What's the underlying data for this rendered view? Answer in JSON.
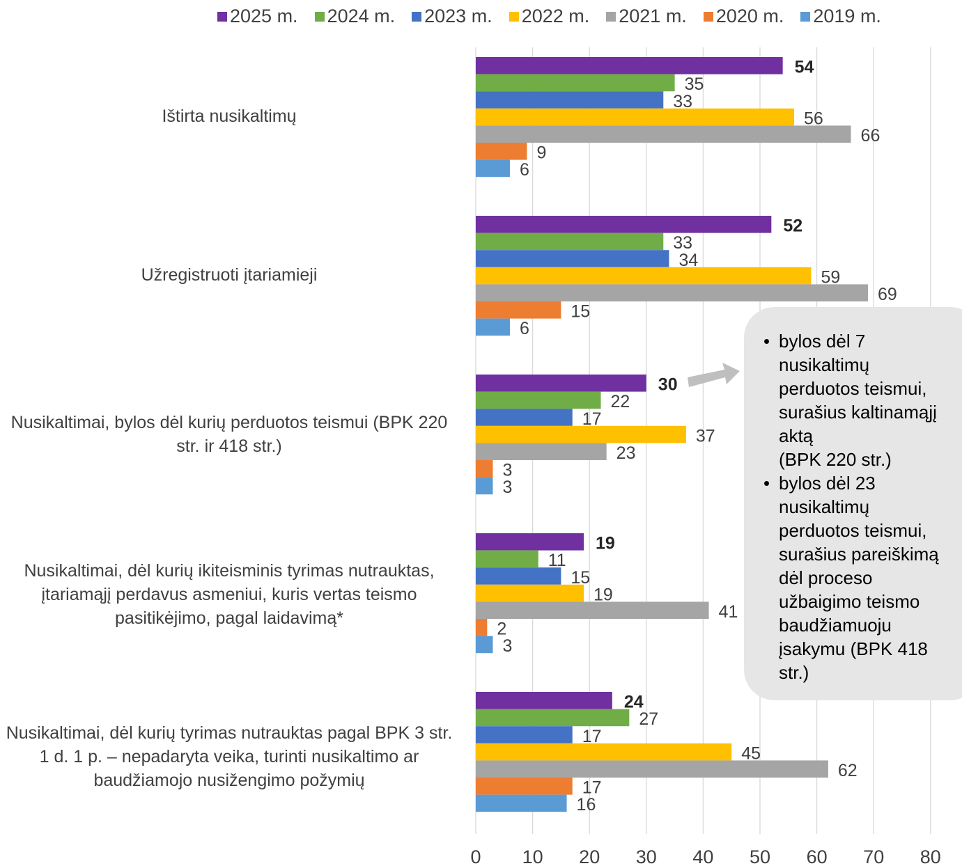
{
  "chart_data": {
    "type": "bar",
    "orientation": "horizontal",
    "categories": [
      "Ištirta nusikaltimų",
      "Užregistruoti įtariamieji",
      "Nusikaltimai, bylos dėl kurių perduotos teismui (BPK 220 str. ir 418 str.)",
      "Nusikaltimai, dėl kurių ikiteisminis tyrimas nutrauktas, įtariamąjį perdavus asmeniui, kuris vertas teismo pasitikėjimo, pagal laidavimą*",
      "Nusikaltimai, dėl kurių tyrimas nutrauktas pagal BPK 3 str. 1 d. 1 p. – nepadaryta veika, turinti nusikaltimo ar baudžiamojo nusižengimo požymių"
    ],
    "series": [
      {
        "name": "2025 m.",
        "color": "#7030A0",
        "values": [
          54,
          52,
          30,
          19,
          24
        ]
      },
      {
        "name": "2024 m.",
        "color": "#70AD47",
        "values": [
          35,
          33,
          22,
          11,
          27
        ]
      },
      {
        "name": "2023 m.",
        "color": "#4472C4",
        "values": [
          33,
          34,
          17,
          15,
          17
        ]
      },
      {
        "name": "2022 m.",
        "color": "#FFC000",
        "values": [
          56,
          59,
          37,
          19,
          45
        ]
      },
      {
        "name": "2021 m.",
        "color": "#A5A5A5",
        "values": [
          66,
          69,
          23,
          41,
          62
        ]
      },
      {
        "name": "2020 m.",
        "color": "#ED7D31",
        "values": [
          9,
          15,
          3,
          2,
          17
        ]
      },
      {
        "name": "2019 m.",
        "color": "#5B9BD5",
        "values": [
          6,
          6,
          3,
          3,
          16
        ]
      }
    ],
    "xlim": [
      0,
      80
    ],
    "xticks": [
      "0",
      "10",
      "20",
      "30",
      "40",
      "50",
      "60",
      "70",
      "80"
    ],
    "grid": "vertical",
    "legend_position": "top",
    "bold_series": "2025 m."
  },
  "callout": {
    "items": [
      "bylos dėl 7\nnusikaltimų\nperduotos teismui,\nsurašius kaltinamąjį\naktą\n(BPK 220 str.)",
      "bylos dėl 23\nnusikaltimų\nperduotos teismui,\nsurašius pareiškimą\ndėl proceso\nužbaigimo teismo\nbaudžiamuoju\nįsakymu (BPK 418\nstr.)"
    ]
  }
}
